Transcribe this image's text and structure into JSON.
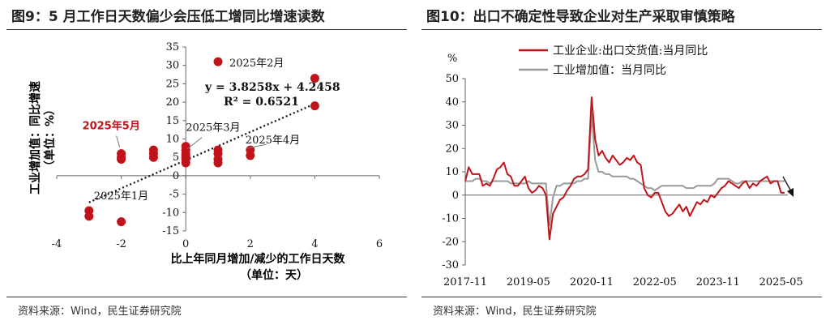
{
  "left": {
    "title": "图9：5 月工作日天数偏少会压低工增同比增速读数",
    "source": "资料来源：Wind，民生证券研究院",
    "ylabel_line1": "工业增加值：同比增速",
    "ylabel_line2": "（单位：%）",
    "xlabel_line1": "比上年同月增加/减少的工作日天数",
    "xlabel_line2": "（单位：天）"
  },
  "right": {
    "title": "图10：出口不确定性导致企业对生产采取审慎策略",
    "source": "资料来源：Wind，民生证券研究院",
    "y_unit": "%"
  },
  "colors": {
    "red": "#c0141b",
    "gray": "#999999",
    "dark": "#222222"
  },
  "chart_data": [
    {
      "type": "scatter",
      "xlim": [
        -4,
        6
      ],
      "ylim": [
        -15,
        35
      ],
      "xticks": [
        -4,
        -2,
        0,
        2,
        4,
        6
      ],
      "yticks": [
        -15,
        -10,
        -5,
        0,
        5,
        10,
        15,
        20,
        25,
        30,
        35
      ],
      "points": [
        {
          "x": -3,
          "y": -9.5
        },
        {
          "x": -3,
          "y": -11
        },
        {
          "x": -2,
          "y": -12.5
        },
        {
          "x": -2,
          "y": 6
        },
        {
          "x": -2,
          "y": 5
        },
        {
          "x": -2,
          "y": 4.5
        },
        {
          "x": -1,
          "y": 7
        },
        {
          "x": -1,
          "y": 6
        },
        {
          "x": -1,
          "y": 5
        },
        {
          "x": 0,
          "y": 8
        },
        {
          "x": 0,
          "y": 7
        },
        {
          "x": 0,
          "y": 6
        },
        {
          "x": 0,
          "y": 5.5
        },
        {
          "x": 0,
          "y": 5
        },
        {
          "x": 0,
          "y": 4.5
        },
        {
          "x": 0,
          "y": 3.5
        },
        {
          "x": 1,
          "y": 7
        },
        {
          "x": 1,
          "y": 6
        },
        {
          "x": 1,
          "y": 4.5
        },
        {
          "x": 1,
          "y": 3.5
        },
        {
          "x": 2,
          "y": 7
        },
        {
          "x": 2,
          "y": 5.5
        },
        {
          "x": 1,
          "y": 31
        },
        {
          "x": 4,
          "y": 26.5
        },
        {
          "x": 4,
          "y": 19
        }
      ],
      "trendline": {
        "slope": 3.8258,
        "intercept": 4.2458,
        "x_range": [
          -3,
          4
        ]
      },
      "equation": "y = 3.8258x + 4.2458",
      "r2": "R² = 0.6521",
      "annotations": [
        {
          "text": "2025年2月",
          "x": 1,
          "y": 31
        },
        {
          "text": "2025年3月",
          "x": 0,
          "y": 6
        },
        {
          "text": "2025年4月",
          "x": 2,
          "y": 7
        },
        {
          "text": "2025年5月",
          "x": -2,
          "y": 6
        },
        {
          "text": "2025年1月",
          "x": -3,
          "y": -9.5
        }
      ]
    },
    {
      "type": "line",
      "ylim": [
        -30,
        50
      ],
      "yticks": [
        -30,
        -20,
        -10,
        0,
        10,
        20,
        30,
        40,
        50
      ],
      "xtick_labels": [
        "2017-11",
        "2019-05",
        "2020-11",
        "2022-05",
        "2023-11",
        "2025-05"
      ],
      "xtick_index": [
        0,
        18,
        36,
        54,
        72,
        90
      ],
      "series": [
        {
          "name": "工业企业:出口交货值:当月同比",
          "values": [
            6,
            12,
            9,
            9,
            9,
            4,
            5,
            4,
            7,
            11,
            12,
            14,
            9,
            8,
            4,
            4,
            6,
            8,
            3,
            1,
            2,
            4,
            3,
            0,
            -19,
            -8,
            -5,
            -2,
            -1,
            2,
            4,
            7,
            8,
            8,
            9,
            11,
            42,
            24,
            17,
            19,
            16,
            14,
            17,
            15,
            13,
            14,
            16,
            15,
            17,
            14,
            13,
            3,
            0,
            -1,
            1,
            1,
            -3,
            -7,
            -9,
            -8,
            -6,
            -4,
            -7,
            -5,
            -9,
            -6,
            -3,
            -4,
            -2,
            -3,
            0,
            -1,
            1,
            3,
            4,
            6,
            5,
            4,
            3,
            5,
            6,
            3,
            5,
            4,
            6,
            7,
            8,
            5,
            6,
            6,
            1,
            1
          ]
        },
        {
          "name": "工业增加值：当月同比",
          "values": [
            6,
            6,
            6,
            7,
            7,
            6,
            6,
            5,
            6,
            6,
            6,
            6,
            6,
            5,
            5,
            5,
            5,
            5,
            6,
            5,
            5,
            5,
            5,
            5,
            -13,
            -1,
            4,
            4,
            5,
            5,
            5,
            5,
            6,
            6,
            7,
            7,
            35,
            15,
            10,
            10,
            9,
            9,
            8,
            8,
            8,
            8,
            8,
            7,
            7,
            6,
            5,
            4,
            3,
            3,
            2,
            3,
            4,
            4,
            4,
            4,
            4,
            4,
            4,
            3,
            3,
            3,
            4,
            4,
            4,
            4,
            4,
            5,
            7,
            7,
            7,
            7,
            6,
            5,
            5,
            6,
            6,
            6,
            6,
            6,
            6,
            6,
            6,
            6,
            6,
            6,
            6,
            6
          ]
        }
      ]
    }
  ]
}
